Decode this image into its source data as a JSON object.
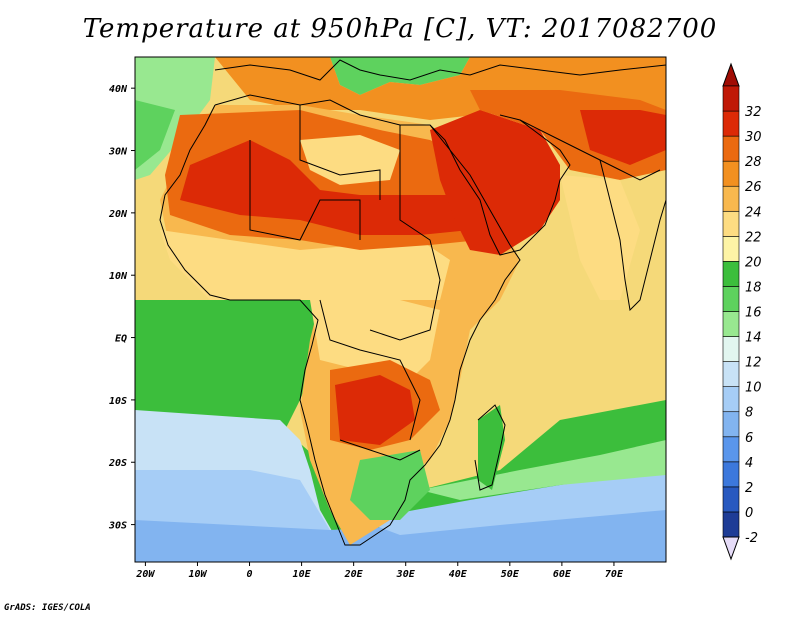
{
  "title": "Temperature at 950hPa [C], VT: 2017082700",
  "credit": "GrADS: IGES/COLA",
  "map": {
    "lon_range": [
      -22,
      80
    ],
    "lat_range": [
      -36,
      45
    ],
    "lon_ticks": [
      {
        "lon": -20,
        "label": "20W"
      },
      {
        "lon": -10,
        "label": "10W"
      },
      {
        "lon": 0,
        "label": "0"
      },
      {
        "lon": 10,
        "label": "10E"
      },
      {
        "lon": 20,
        "label": "20E"
      },
      {
        "lon": 30,
        "label": "30E"
      },
      {
        "lon": 40,
        "label": "40E"
      },
      {
        "lon": 50,
        "label": "50E"
      },
      {
        "lon": 60,
        "label": "60E"
      },
      {
        "lon": 70,
        "label": "70E"
      }
    ],
    "lat_ticks": [
      {
        "lat": 40,
        "label": "40N"
      },
      {
        "lat": 30,
        "label": "30N"
      },
      {
        "lat": 20,
        "label": "20N"
      },
      {
        "lat": 10,
        "label": "10N"
      },
      {
        "lat": 0,
        "label": "EQ"
      },
      {
        "lat": -10,
        "label": "10S"
      },
      {
        "lat": -20,
        "label": "20S"
      },
      {
        "lat": -30,
        "label": "30S"
      }
    ]
  },
  "colorbar": {
    "levels": [
      "-2",
      "0",
      "2",
      "4",
      "6",
      "8",
      "10",
      "12",
      "14",
      "16",
      "18",
      "20",
      "22",
      "24",
      "26",
      "28",
      "30",
      "32"
    ],
    "colors": [
      "#1e3c96",
      "#2859c0",
      "#3c78dc",
      "#5a96ec",
      "#82b4f0",
      "#a6cdf6",
      "#c8e2f6",
      "#e2f6f0",
      "#98e890",
      "#5ed25e",
      "#3cbe3c",
      "#fdf4a6",
      "#fddc82",
      "#f8b84e",
      "#f29020",
      "#eb6a10",
      "#dc2a06",
      "#c01806"
    ],
    "below_color": "#e6dcf8",
    "above_color": "#a00c04"
  },
  "fields": {
    "ocean": "#f5d979",
    "sahara": "#dc2a06",
    "arabia": "#dc2a06",
    "southern_africa_hot": "#dc2a06",
    "atlantic_north": "#3cbe3c",
    "atlantic_south": "#a6cdf6",
    "southern_ocean": "#82b4f0"
  }
}
